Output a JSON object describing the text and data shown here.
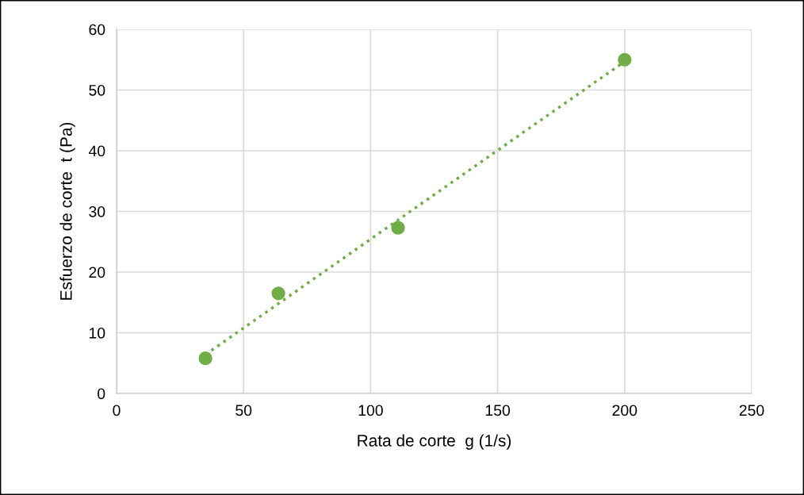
{
  "chart_data": {
    "type": "scatter",
    "xlabel": "Rata de corte  g (1/s)",
    "ylabel": "Esfuerzo de corte  t (Pa)",
    "series": [
      {
        "color": "#70ad47",
        "x": [
          35,
          63.7,
          110.8,
          200
        ],
        "values": [
          5.8,
          16.5,
          27.3,
          55
        ],
        "marker": "circle"
      },
      {
        "type": "line",
        "color": "#70ad47",
        "x": [
          35,
          200
        ],
        "values": [
          6.4,
          54.7
        ],
        "line_style": "dotted",
        "marker": "none"
      }
    ],
    "xlim": [
      0,
      250
    ],
    "xticks": [
      0,
      50,
      100,
      150,
      200,
      250
    ],
    "ylim": [
      0,
      60
    ],
    "yticks": [
      0,
      10,
      20,
      30,
      40,
      50,
      60
    ],
    "grid": true,
    "legend": false
  }
}
